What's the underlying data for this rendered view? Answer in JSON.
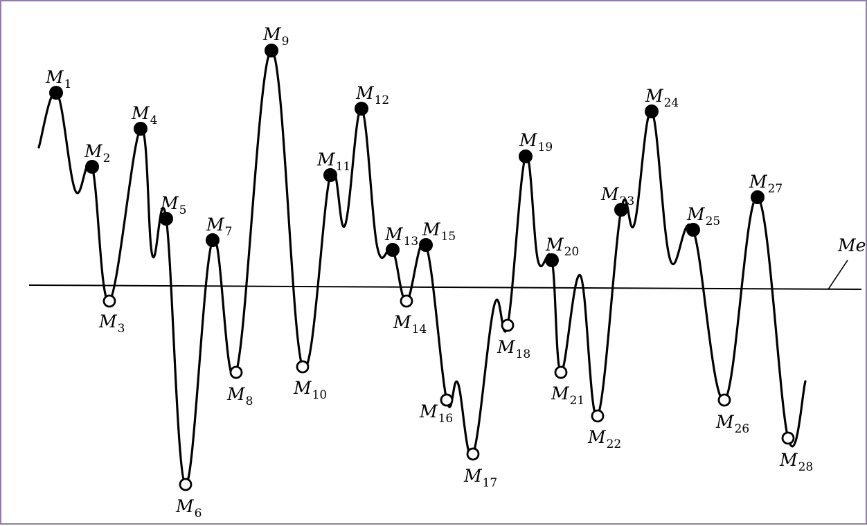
{
  "diagram": {
    "median_line_label": "Me",
    "curve_color": "#000000",
    "frame_color": "#8f7fa6",
    "points": [
      {
        "id": "M1",
        "letter": "M",
        "sub": "1",
        "kind": "max"
      },
      {
        "id": "M2",
        "letter": "M",
        "sub": "2",
        "kind": "max"
      },
      {
        "id": "M3",
        "letter": "M",
        "sub": "3",
        "kind": "min"
      },
      {
        "id": "M4",
        "letter": "M",
        "sub": "4",
        "kind": "max"
      },
      {
        "id": "M5",
        "letter": "M",
        "sub": "5",
        "kind": "max"
      },
      {
        "id": "M6",
        "letter": "M",
        "sub": "6",
        "kind": "min"
      },
      {
        "id": "M7",
        "letter": "M",
        "sub": "7",
        "kind": "max"
      },
      {
        "id": "M8",
        "letter": "M",
        "sub": "8",
        "kind": "min"
      },
      {
        "id": "M9",
        "letter": "M",
        "sub": "9",
        "kind": "max"
      },
      {
        "id": "M10",
        "letter": "M",
        "sub": "10",
        "kind": "min"
      },
      {
        "id": "M11",
        "letter": "M",
        "sub": "11",
        "kind": "max"
      },
      {
        "id": "M12",
        "letter": "M",
        "sub": "12",
        "kind": "max"
      },
      {
        "id": "M13",
        "letter": "M",
        "sub": "13",
        "kind": "max"
      },
      {
        "id": "M14",
        "letter": "M",
        "sub": "14",
        "kind": "min"
      },
      {
        "id": "M15",
        "letter": "M",
        "sub": "15",
        "kind": "max"
      },
      {
        "id": "M16",
        "letter": "M",
        "sub": "16",
        "kind": "min"
      },
      {
        "id": "M17",
        "letter": "M",
        "sub": "17",
        "kind": "min"
      },
      {
        "id": "M18",
        "letter": "M",
        "sub": "18",
        "kind": "min"
      },
      {
        "id": "M19",
        "letter": "M",
        "sub": "19",
        "kind": "max"
      },
      {
        "id": "M20",
        "letter": "M",
        "sub": "20",
        "kind": "max"
      },
      {
        "id": "M21",
        "letter": "M",
        "sub": "21",
        "kind": "min"
      },
      {
        "id": "M22",
        "letter": "M",
        "sub": "22",
        "kind": "min"
      },
      {
        "id": "M23",
        "letter": "M",
        "sub": "23",
        "kind": "max"
      },
      {
        "id": "M24",
        "letter": "M",
        "sub": "24",
        "kind": "max"
      },
      {
        "id": "M25",
        "letter": "M",
        "sub": "25",
        "kind": "max"
      },
      {
        "id": "M26",
        "letter": "M",
        "sub": "26",
        "kind": "min"
      },
      {
        "id": "M27",
        "letter": "M",
        "sub": "27",
        "kind": "max"
      },
      {
        "id": "M28",
        "letter": "M",
        "sub": "28",
        "kind": "min"
      }
    ]
  }
}
